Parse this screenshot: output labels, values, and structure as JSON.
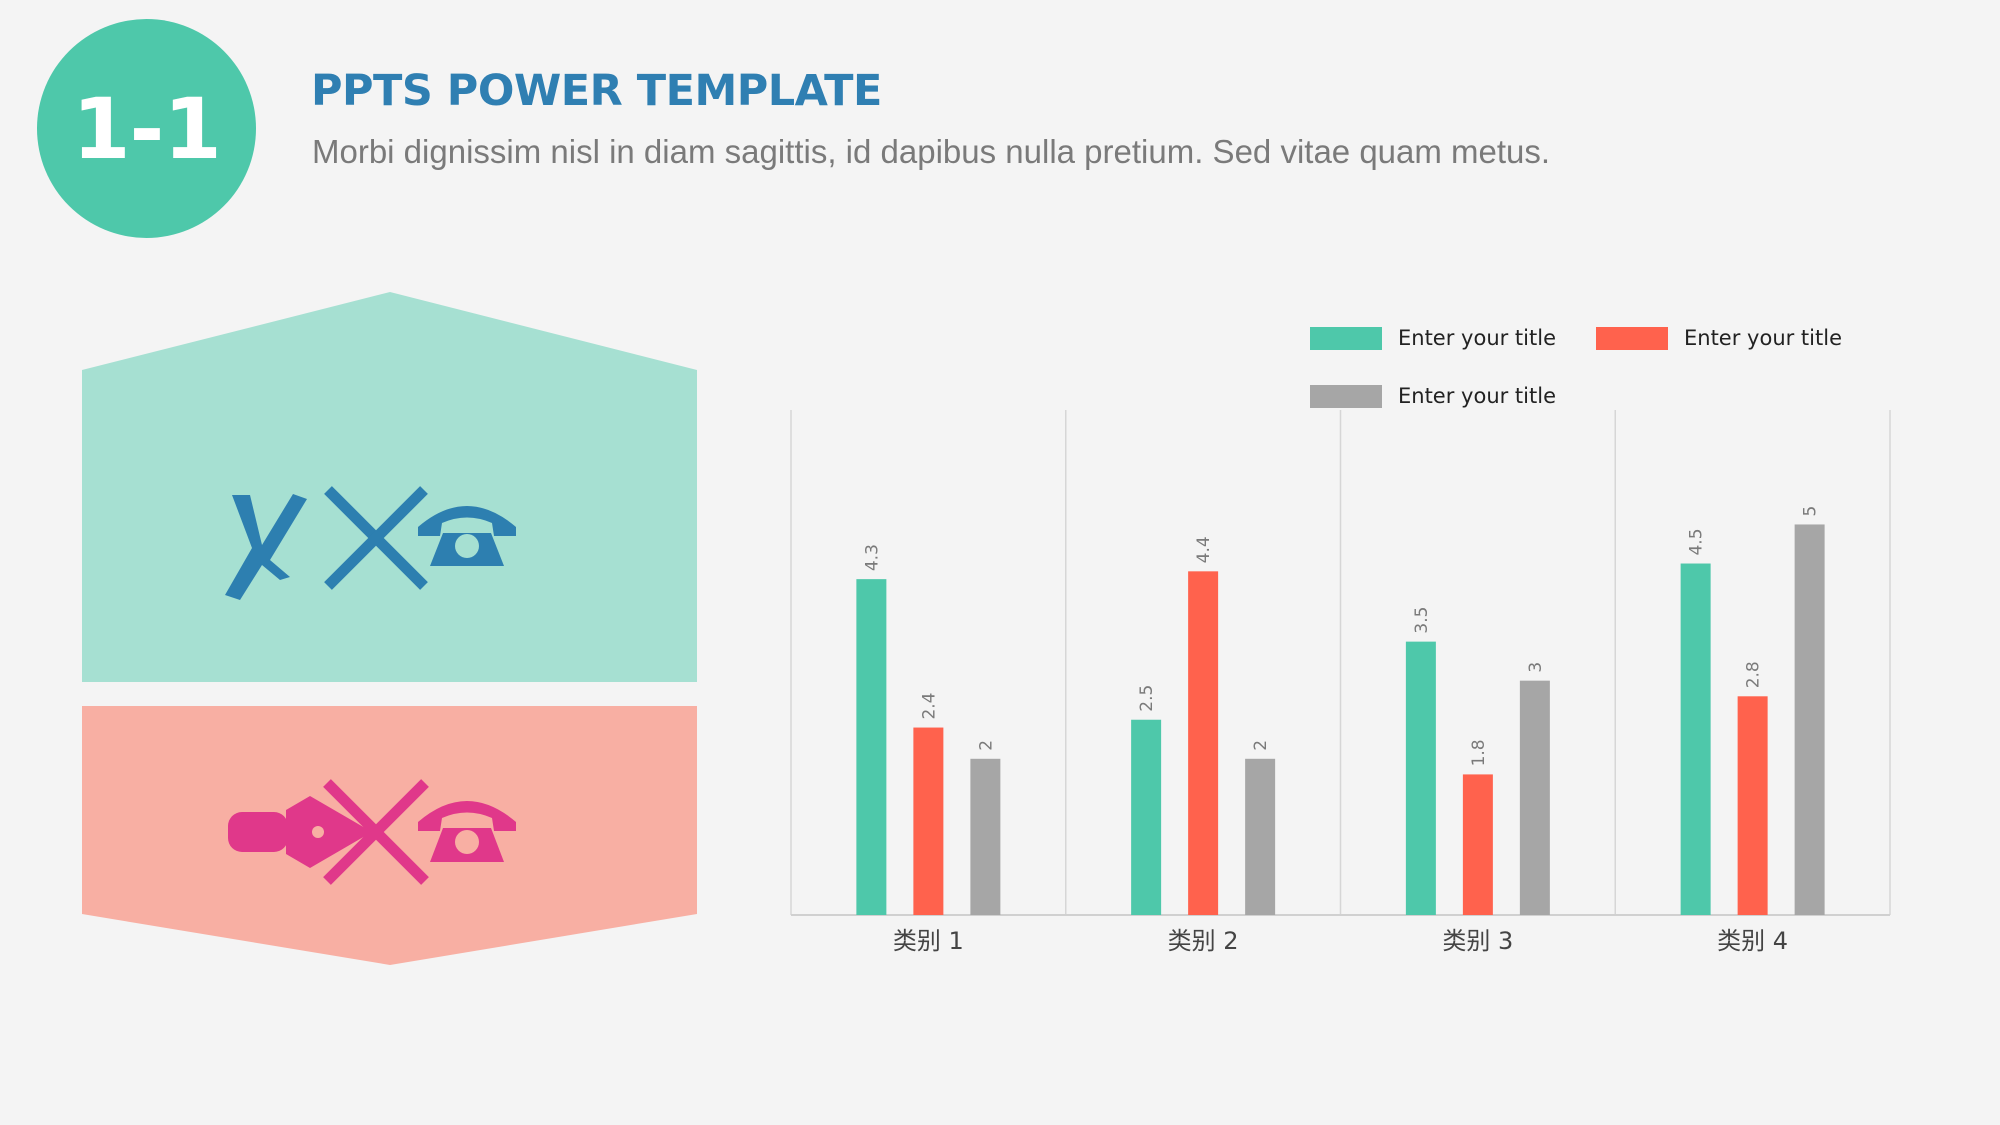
{
  "header": {
    "badge": "1-1",
    "title": "PPTS POWER TEMPLATE",
    "subtitle": "Morbi dignissim nisl in diam sagittis, id dapibus nulla pretium. Sed vitae quam metus."
  },
  "panels": {
    "top": {
      "color": "#a6e0d2",
      "icon_color": "#2d7fb0",
      "icons": [
        "pen-nib-icon",
        "cross-icon",
        "telephone-icon"
      ]
    },
    "bottom": {
      "color": "#f8afa3",
      "icon_color": "#e0388a",
      "icons": [
        "fountain-pen-icon",
        "cross-icon",
        "telephone-icon"
      ]
    }
  },
  "chart_data": {
    "type": "bar",
    "categories": [
      "类别  1",
      "类别  2",
      "类别  3",
      "类别  4"
    ],
    "series": [
      {
        "name": "Enter your title",
        "color": "#4ec8aa",
        "values": [
          4.3,
          2.5,
          3.5,
          4.5
        ]
      },
      {
        "name": "Enter your title",
        "color": "#ff624d",
        "values": [
          2.4,
          4.4,
          1.8,
          2.8
        ]
      },
      {
        "name": "Enter your title",
        "color": "#a6a6a6",
        "values": [
          2,
          2,
          3,
          5
        ]
      }
    ],
    "ylim": [
      0,
      6
    ],
    "grid": "vertical separators",
    "legend": "top-right",
    "data_labels": true
  }
}
